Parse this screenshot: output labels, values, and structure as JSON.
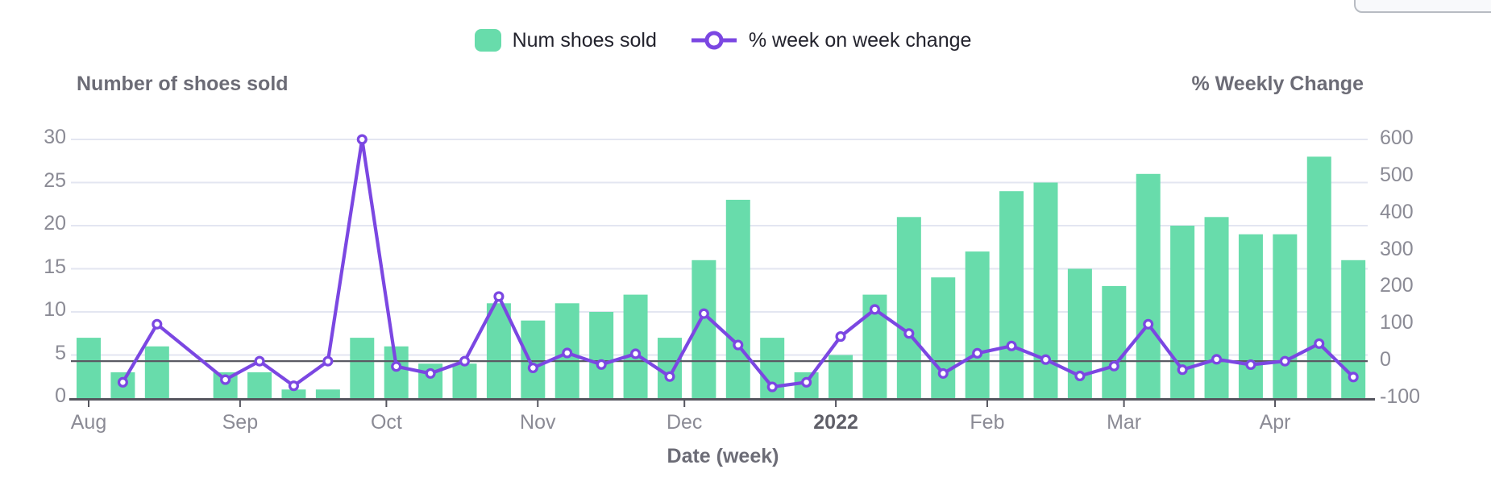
{
  "legend": {
    "items": [
      {
        "label": "Num shoes sold",
        "marker": "bar-swatch"
      },
      {
        "label": "% week on week change",
        "marker": "open-circle-line"
      }
    ]
  },
  "axes": {
    "left": {
      "title": "Number of shoes sold",
      "tick_values": [
        0,
        5,
        10,
        15,
        20,
        25,
        30
      ],
      "range": [
        0,
        30
      ]
    },
    "right": {
      "title": "% Weekly Change",
      "tick_values": [
        -100,
        0,
        100,
        200,
        300,
        400,
        500,
        600
      ],
      "range": [
        -100,
        600
      ]
    },
    "x": {
      "title": "Date (week)",
      "ticks": [
        {
          "label": "Aug",
          "week": 1,
          "bold": false
        },
        {
          "label": "Sep",
          "week": 5.43,
          "bold": false
        },
        {
          "label": "Oct",
          "week": 9.71,
          "bold": false
        },
        {
          "label": "Nov",
          "week": 14.14,
          "bold": false
        },
        {
          "label": "Dec",
          "week": 18.43,
          "bold": false
        },
        {
          "label": "2022",
          "week": 22.86,
          "bold": true
        },
        {
          "label": "Feb",
          "week": 27.29,
          "bold": false
        },
        {
          "label": "Mar",
          "week": 31.29,
          "bold": false
        },
        {
          "label": "Apr",
          "week": 35.71,
          "bold": false
        }
      ]
    }
  },
  "chart_data": [
    {
      "type": "bar",
      "name": "Num shoes sold",
      "axis": "left",
      "ylim": [
        0,
        30
      ],
      "color": "#68dcab",
      "x_weeks": [
        1,
        2,
        3,
        4,
        5,
        6,
        7,
        8,
        9,
        10,
        11,
        12,
        13,
        14,
        15,
        16,
        17,
        18,
        19,
        20,
        21,
        22,
        23,
        24,
        25,
        26,
        27,
        28,
        29,
        30,
        31,
        32,
        33,
        34,
        35,
        36,
        37,
        38
      ],
      "values": [
        7,
        3,
        6,
        null,
        3,
        3,
        1,
        1,
        7,
        6,
        4,
        4,
        11,
        9,
        11,
        10,
        12,
        7,
        16,
        23,
        7,
        3,
        5,
        12,
        21,
        14,
        17,
        24,
        25,
        15,
        13,
        26,
        20,
        21,
        19,
        19,
        28,
        16
      ],
      "note": "weekly bins Aug 2021 - Apr 2022; week 4 (late Aug) has no bar"
    },
    {
      "type": "line",
      "name": "% week on week change",
      "axis": "right",
      "ylim": [
        -100,
        600
      ],
      "color": "#7b47e2",
      "marker": "open-circle",
      "x_weeks": [
        2,
        3,
        5,
        6,
        7,
        8,
        9,
        10,
        11,
        12,
        13,
        14,
        15,
        16,
        17,
        18,
        19,
        20,
        21,
        22,
        23,
        24,
        25,
        26,
        27,
        28,
        29,
        30,
        31,
        32,
        33,
        34,
        35,
        36,
        37,
        38
      ],
      "values": [
        -57.1,
        100,
        -50,
        0,
        -66.7,
        0,
        600,
        -14.3,
        -33.3,
        0,
        175,
        -18.2,
        22.2,
        -9.1,
        20,
        -41.7,
        128.6,
        43.8,
        -69.6,
        -57.1,
        66.7,
        140,
        75,
        -33.3,
        21.4,
        41.2,
        4.2,
        -40,
        -13.3,
        100,
        -23.1,
        5,
        -9.5,
        0,
        47.4,
        -42.9
      ]
    }
  ],
  "colors": {
    "bar": "#68dcab",
    "line": "#7b47e2",
    "grid": "#e3e6f1",
    "zero_line": "#5a5a63",
    "axis_line": "#55555e",
    "tick_label": "#8b8b95",
    "bold_tick_label": "#5f5f68",
    "axis_title": "#6c6c76",
    "legend_text": "#23232d",
    "panel_border": "#b8bcc3",
    "panel_fill": "#f8f9fb"
  }
}
